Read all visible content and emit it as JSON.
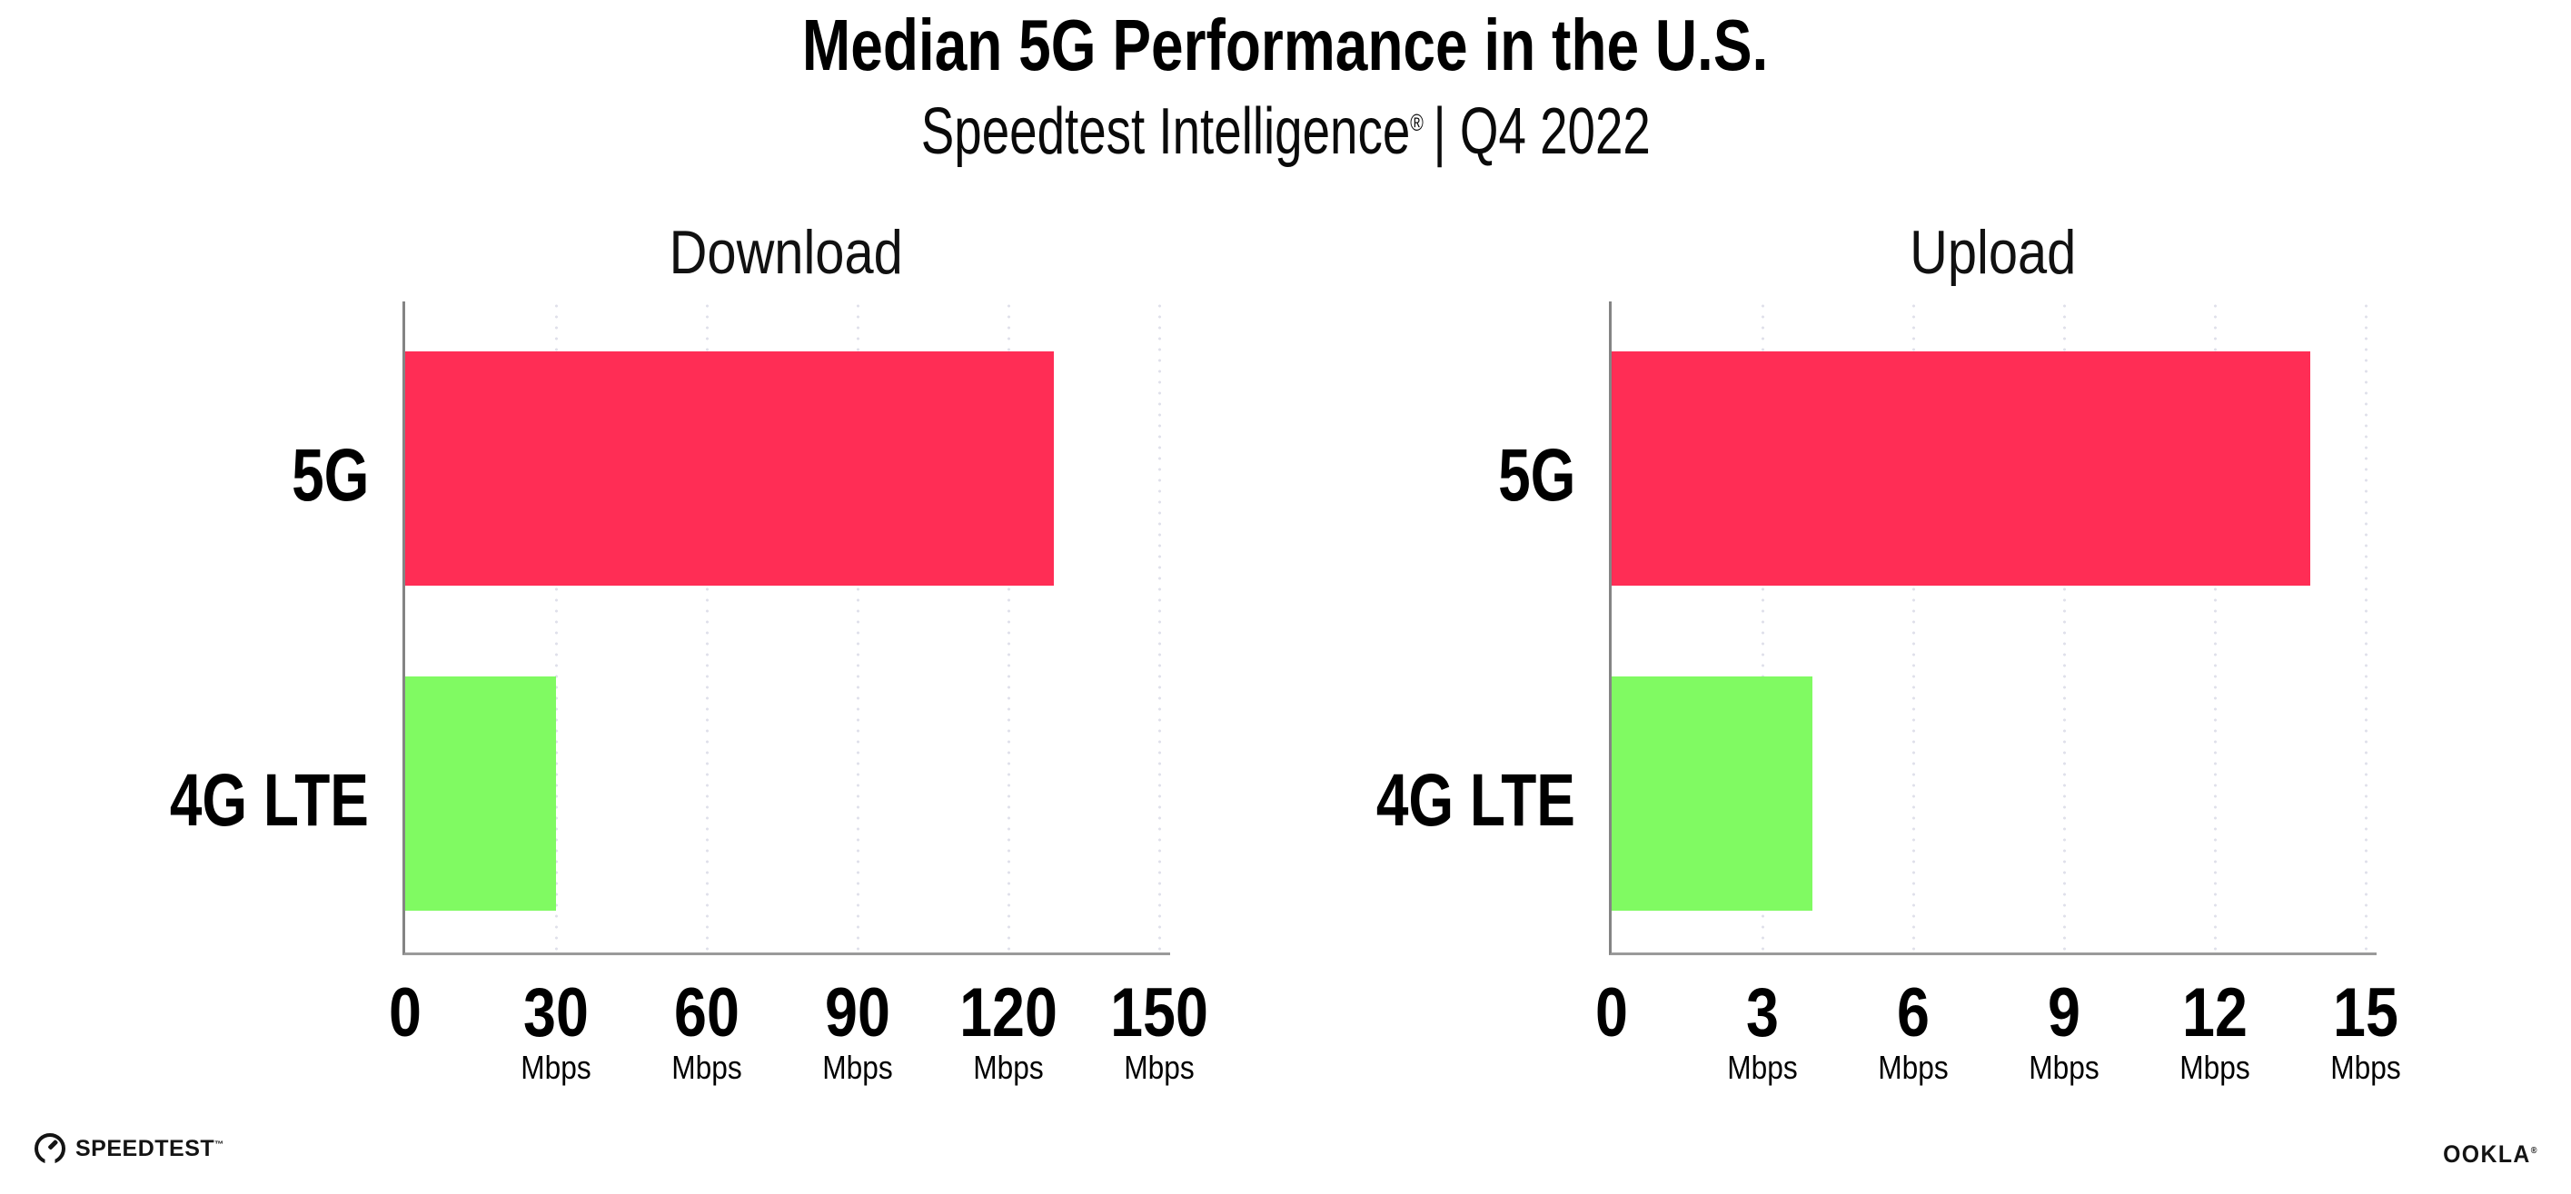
{
  "header": {
    "title": "Median 5G Performance in the U.S.",
    "subtitle_brand": "Speedtest Intelligence",
    "subtitle_registered": "®",
    "subtitle_period": "| Q4 2022"
  },
  "chart_data": [
    {
      "type": "bar",
      "orientation": "horizontal",
      "title": "Download",
      "categories": [
        "5G",
        "4G LTE"
      ],
      "values": [
        129,
        30
      ],
      "unit": "Mbps",
      "bar_colors": [
        "#FF2D55",
        "#80FA62"
      ],
      "xlim": [
        0,
        150
      ],
      "xticks": [
        0,
        30,
        60,
        90,
        120,
        150
      ],
      "xtick_unit": "Mbps",
      "grid": "vertical-dotted",
      "legend": "none"
    },
    {
      "type": "bar",
      "orientation": "horizontal",
      "title": "Upload",
      "categories": [
        "5G",
        "4G LTE"
      ],
      "values": [
        13.9,
        4
      ],
      "unit": "Mbps",
      "bar_colors": [
        "#FF2D55",
        "#80FA62"
      ],
      "xlim": [
        0,
        15
      ],
      "xticks": [
        0,
        3,
        6,
        9,
        12,
        15
      ],
      "xtick_unit": "Mbps",
      "grid": "vertical-dotted",
      "legend": "none"
    }
  ],
  "footer": {
    "speedtest_label": "SPEEDTEST",
    "speedtest_trademark": "™",
    "ookla_label": "OOKLA",
    "ookla_registered": "®"
  },
  "colors": {
    "bar_5g": "#FF2D55",
    "bar_4g_lte": "#80FA62",
    "gridline": "#DFE0EA",
    "y_axis": "#848484",
    "x_axis": "#9A9A9A",
    "text": "#000000",
    "background": "#FFFFFF"
  }
}
